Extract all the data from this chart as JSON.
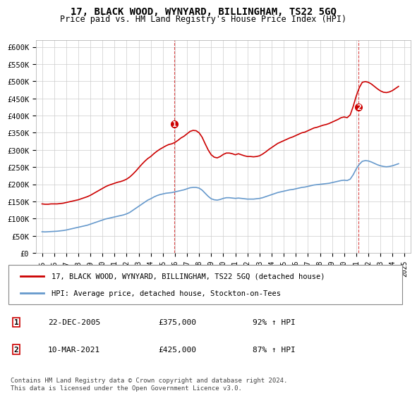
{
  "title": "17, BLACK WOOD, WYNYARD, BILLINGHAM, TS22 5GQ",
  "subtitle": "Price paid vs. HM Land Registry's House Price Index (HPI)",
  "ylabel": "",
  "xlabel": "",
  "ylim": [
    0,
    620000
  ],
  "yticks": [
    0,
    50000,
    100000,
    150000,
    200000,
    250000,
    300000,
    350000,
    400000,
    450000,
    500000,
    550000,
    600000
  ],
  "ytick_labels": [
    "£0",
    "£50K",
    "£100K",
    "£150K",
    "£200K",
    "£250K",
    "£300K",
    "£350K",
    "£400K",
    "£450K",
    "£500K",
    "£550K",
    "£600K"
  ],
  "xlim_start": 1994.5,
  "xlim_end": 2025.5,
  "transaction1_date": "22-DEC-2005",
  "transaction1_price": "£375,000",
  "transaction1_hpi": "92% ↑ HPI",
  "transaction1_x": 2005.97,
  "transaction1_y": 375000,
  "transaction2_date": "10-MAR-2021",
  "transaction2_price": "£425,000",
  "transaction2_hpi": "87% ↑ HPI",
  "transaction2_x": 2021.19,
  "transaction2_y": 425000,
  "legend_label1": "17, BLACK WOOD, WYNYARD, BILLINGHAM, TS22 5GQ (detached house)",
  "legend_label2": "HPI: Average price, detached house, Stockton-on-Tees",
  "footer": "Contains HM Land Registry data © Crown copyright and database right 2024.\nThis data is licensed under the Open Government Licence v3.0.",
  "line_color_red": "#cc0000",
  "line_color_blue": "#6699cc",
  "background_color": "#ffffff",
  "grid_color": "#cccccc",
  "xtick_years": [
    1995,
    1996,
    1997,
    1998,
    1999,
    2000,
    2001,
    2002,
    2003,
    2004,
    2005,
    2006,
    2007,
    2008,
    2009,
    2010,
    2011,
    2012,
    2013,
    2014,
    2015,
    2016,
    2017,
    2018,
    2019,
    2020,
    2021,
    2022,
    2023,
    2024,
    2025
  ],
  "hpi_data": {
    "x": [
      1995.0,
      1995.25,
      1995.5,
      1995.75,
      1996.0,
      1996.25,
      1996.5,
      1996.75,
      1997.0,
      1997.25,
      1997.5,
      1997.75,
      1998.0,
      1998.25,
      1998.5,
      1998.75,
      1999.0,
      1999.25,
      1999.5,
      1999.75,
      2000.0,
      2000.25,
      2000.5,
      2000.75,
      2001.0,
      2001.25,
      2001.5,
      2001.75,
      2002.0,
      2002.25,
      2002.5,
      2002.75,
      2003.0,
      2003.25,
      2003.5,
      2003.75,
      2004.0,
      2004.25,
      2004.5,
      2004.75,
      2005.0,
      2005.25,
      2005.5,
      2005.75,
      2006.0,
      2006.25,
      2006.5,
      2006.75,
      2007.0,
      2007.25,
      2007.5,
      2007.75,
      2008.0,
      2008.25,
      2008.5,
      2008.75,
      2009.0,
      2009.25,
      2009.5,
      2009.75,
      2010.0,
      2010.25,
      2010.5,
      2010.75,
      2011.0,
      2011.25,
      2011.5,
      2011.75,
      2012.0,
      2012.25,
      2012.5,
      2012.75,
      2013.0,
      2013.25,
      2013.5,
      2013.75,
      2014.0,
      2014.25,
      2014.5,
      2014.75,
      2015.0,
      2015.25,
      2015.5,
      2015.75,
      2016.0,
      2016.25,
      2016.5,
      2016.75,
      2017.0,
      2017.25,
      2017.5,
      2017.75,
      2018.0,
      2018.25,
      2018.5,
      2018.75,
      2019.0,
      2019.25,
      2019.5,
      2019.75,
      2020.0,
      2020.25,
      2020.5,
      2020.75,
      2021.0,
      2021.25,
      2021.5,
      2021.75,
      2022.0,
      2022.25,
      2022.5,
      2022.75,
      2023.0,
      2023.25,
      2023.5,
      2023.75,
      2024.0,
      2024.25,
      2024.5
    ],
    "y": [
      62000,
      61500,
      62000,
      62500,
      63000,
      63500,
      64500,
      65500,
      67000,
      69000,
      71000,
      73000,
      75000,
      77000,
      79000,
      81000,
      84000,
      87000,
      90000,
      93000,
      96000,
      99000,
      101000,
      103000,
      105000,
      107000,
      109000,
      111000,
      114000,
      118000,
      124000,
      130000,
      136000,
      142000,
      148000,
      154000,
      158000,
      163000,
      167000,
      170000,
      172000,
      174000,
      175000,
      176000,
      178000,
      180000,
      182000,
      184000,
      187000,
      190000,
      191000,
      191000,
      189000,
      183000,
      174000,
      165000,
      158000,
      155000,
      154000,
      156000,
      159000,
      161000,
      161000,
      160000,
      159000,
      160000,
      159000,
      158000,
      157000,
      157000,
      157000,
      158000,
      159000,
      161000,
      164000,
      167000,
      170000,
      173000,
      176000,
      178000,
      180000,
      182000,
      184000,
      185000,
      187000,
      189000,
      191000,
      192000,
      194000,
      196000,
      198000,
      199000,
      200000,
      201000,
      202000,
      203000,
      205000,
      207000,
      209000,
      211000,
      212000,
      211000,
      215000,
      228000,
      245000,
      258000,
      267000,
      269000,
      268000,
      265000,
      261000,
      257000,
      254000,
      252000,
      251000,
      252000,
      254000,
      257000,
      260000
    ]
  },
  "property_data": {
    "x": [
      1995.0,
      1995.25,
      1995.5,
      1995.75,
      1996.0,
      1996.25,
      1996.5,
      1996.75,
      1997.0,
      1997.25,
      1997.5,
      1997.75,
      1998.0,
      1998.25,
      1998.5,
      1998.75,
      1999.0,
      1999.25,
      1999.5,
      1999.75,
      2000.0,
      2000.25,
      2000.5,
      2000.75,
      2001.0,
      2001.25,
      2001.5,
      2001.75,
      2002.0,
      2002.25,
      2002.5,
      2002.75,
      2003.0,
      2003.25,
      2003.5,
      2003.75,
      2004.0,
      2004.25,
      2004.5,
      2004.75,
      2005.0,
      2005.25,
      2005.5,
      2005.75,
      2006.0,
      2006.25,
      2006.5,
      2006.75,
      2007.0,
      2007.25,
      2007.5,
      2007.75,
      2008.0,
      2008.25,
      2008.5,
      2008.75,
      2009.0,
      2009.25,
      2009.5,
      2009.75,
      2010.0,
      2010.25,
      2010.5,
      2010.75,
      2011.0,
      2011.25,
      2011.5,
      2011.75,
      2012.0,
      2012.25,
      2012.5,
      2012.75,
      2013.0,
      2013.25,
      2013.5,
      2013.75,
      2014.0,
      2014.25,
      2014.5,
      2014.75,
      2015.0,
      2015.25,
      2015.5,
      2015.75,
      2016.0,
      2016.25,
      2016.5,
      2016.75,
      2017.0,
      2017.25,
      2017.5,
      2017.75,
      2018.0,
      2018.25,
      2018.5,
      2018.75,
      2019.0,
      2019.25,
      2019.5,
      2019.75,
      2020.0,
      2020.25,
      2020.5,
      2020.75,
      2021.0,
      2021.25,
      2021.5,
      2021.75,
      2022.0,
      2022.25,
      2022.5,
      2022.75,
      2023.0,
      2023.25,
      2023.5,
      2023.75,
      2024.0,
      2024.25,
      2024.5
    ],
    "y": [
      143000,
      142000,
      142000,
      143000,
      143000,
      143000,
      144000,
      145000,
      147000,
      149000,
      151000,
      153000,
      155000,
      158000,
      161000,
      164000,
      168000,
      173000,
      178000,
      183000,
      188000,
      193000,
      197000,
      200000,
      203000,
      206000,
      208000,
      211000,
      215000,
      221000,
      229000,
      238000,
      248000,
      258000,
      267000,
      275000,
      281000,
      289000,
      296000,
      302000,
      307000,
      312000,
      316000,
      318000,
      322000,
      328000,
      335000,
      340000,
      347000,
      354000,
      357000,
      356000,
      350000,
      337000,
      318000,
      300000,
      286000,
      279000,
      277000,
      281000,
      287000,
      291000,
      291000,
      289000,
      286000,
      289000,
      286000,
      283000,
      281000,
      281000,
      280000,
      281000,
      283000,
      288000,
      294000,
      301000,
      307000,
      313000,
      319000,
      323000,
      327000,
      331000,
      335000,
      338000,
      342000,
      346000,
      350000,
      352000,
      356000,
      360000,
      364000,
      366000,
      369000,
      372000,
      374000,
      377000,
      381000,
      385000,
      389000,
      394000,
      396000,
      394000,
      402000,
      427000,
      457000,
      481000,
      497000,
      499000,
      497000,
      492000,
      485000,
      478000,
      472000,
      468000,
      467000,
      469000,
      473000,
      479000,
      485000
    ]
  }
}
